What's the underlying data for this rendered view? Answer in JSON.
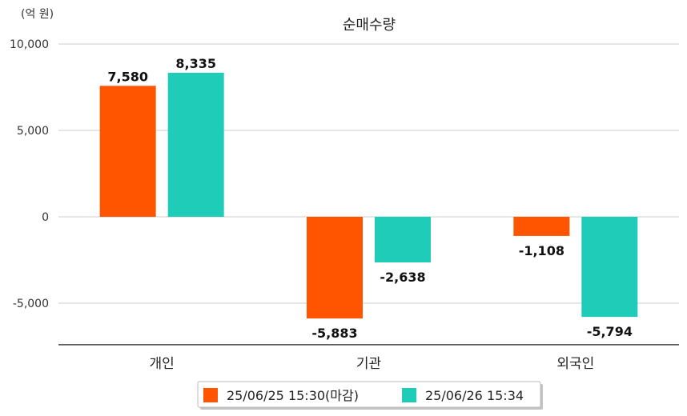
{
  "chart_data": {
    "type": "bar",
    "title": "순매수량",
    "unit_label": "(억 원)",
    "categories": [
      "개인",
      "기관",
      "외국인"
    ],
    "series": [
      {
        "name": "25/06/25 15:30(마감)",
        "color": "#FF5500",
        "values": [
          7580,
          -5883,
          -1108
        ]
      },
      {
        "name": "25/06/26 15:34",
        "color": "#1ECCB8",
        "values": [
          8335,
          -2638,
          -5794
        ]
      }
    ],
    "value_labels": [
      [
        "7,580",
        "-5,883",
        "-1,108"
      ],
      [
        "8,335",
        "-2,638",
        "-5,794"
      ]
    ],
    "y_ticks": [
      10000,
      5000,
      0,
      -5000
    ],
    "y_tick_labels": [
      "10,000",
      "5,000",
      "0",
      "-5,000"
    ],
    "ylim": [
      -7400,
      10000
    ],
    "grid": true,
    "legend_position": "bottom-center"
  }
}
